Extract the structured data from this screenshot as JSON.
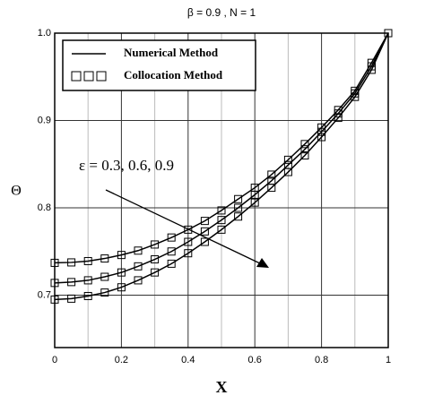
{
  "chart_data": {
    "type": "line",
    "title": "β = 0.9  ,  N = 1",
    "x_label": "X",
    "y_label": "Θ",
    "annotation": "ε = 0.3, 0.6, 0.9",
    "legend_entries": [
      {
        "label": "Numerical Method",
        "marker": "line"
      },
      {
        "label": "Collocation Method",
        "marker": "square"
      }
    ],
    "x": [
      0,
      0.05,
      0.1,
      0.15,
      0.2,
      0.25,
      0.3,
      0.35,
      0.4,
      0.45,
      0.5,
      0.55,
      0.6,
      0.65,
      0.7,
      0.75,
      0.8,
      0.85,
      0.9,
      0.95,
      1.0
    ],
    "series": [
      {
        "color": "#000000",
        "values": [
          0.737,
          0.7375,
          0.739,
          0.742,
          0.746,
          0.751,
          0.758,
          0.766,
          0.775,
          0.785,
          0.797,
          0.81,
          0.823,
          0.838,
          0.855,
          0.873,
          0.892,
          0.912,
          0.934,
          0.966,
          1.0
        ]
      },
      {
        "color": "#000000",
        "values": [
          0.714,
          0.715,
          0.717,
          0.721,
          0.726,
          0.733,
          0.741,
          0.75,
          0.761,
          0.773,
          0.786,
          0.8,
          0.815,
          0.831,
          0.849,
          0.867,
          0.887,
          0.908,
          0.931,
          0.962,
          1.0
        ]
      },
      {
        "color": "#000000",
        "values": [
          0.695,
          0.696,
          0.699,
          0.703,
          0.709,
          0.717,
          0.726,
          0.736,
          0.748,
          0.761,
          0.775,
          0.79,
          0.806,
          0.823,
          0.841,
          0.86,
          0.881,
          0.903,
          0.927,
          0.958,
          1.0
        ]
      }
    ],
    "xlim": [
      0,
      1
    ],
    "xticks": [
      0,
      0.2,
      0.4,
      0.6,
      0.8,
      1
    ],
    "x_minor_grid": [
      0.1,
      0.3,
      0.5,
      0.7,
      0.9
    ],
    "ylim": [
      0.64,
      1.0
    ],
    "yticks": [
      0.7,
      0.8,
      0.9,
      {
        "value": 1.0,
        "label": "1.0"
      }
    ],
    "grid": true
  }
}
